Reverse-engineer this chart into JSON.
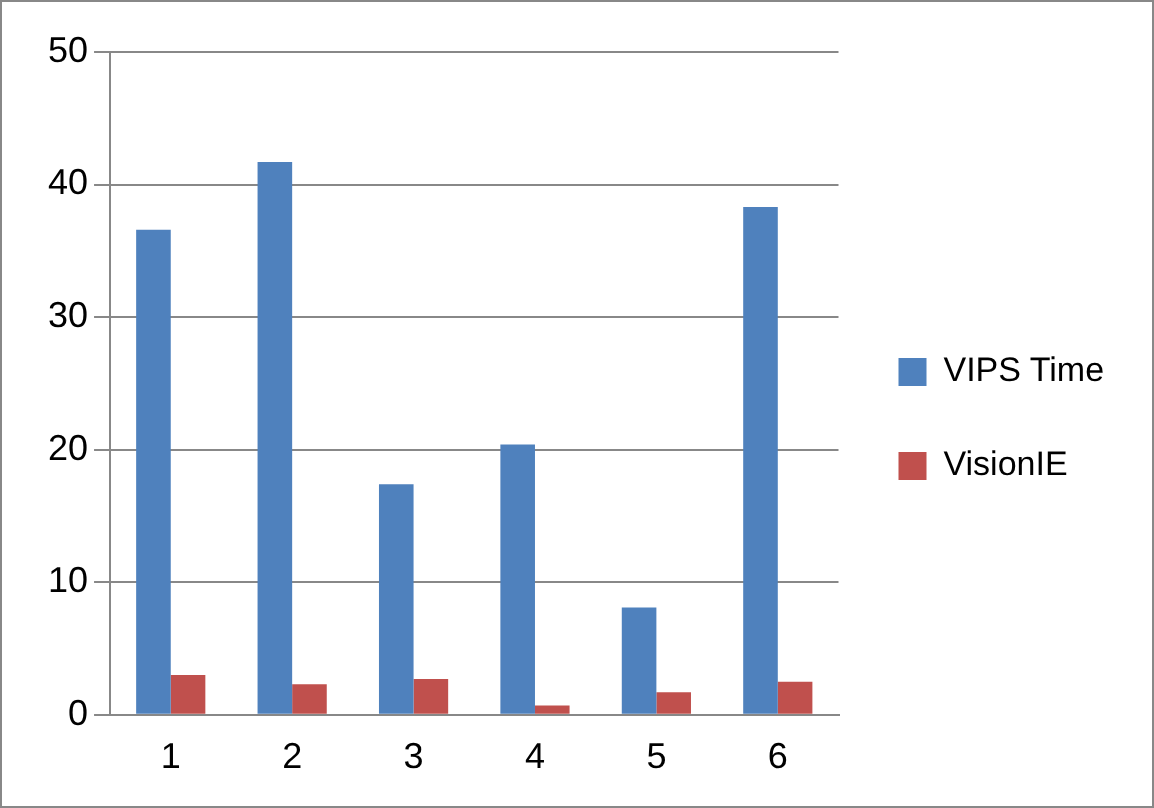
{
  "chart_data": {
    "type": "bar",
    "categories": [
      "1",
      "2",
      "3",
      "4",
      "5",
      "6"
    ],
    "series": [
      {
        "name": "VIPS Time",
        "color": "#4f81bd",
        "values": [
          36.6,
          41.7,
          17.4,
          20.4,
          8.1,
          38.3
        ]
      },
      {
        "name": "VisionIE",
        "color": "#c0504d",
        "values": [
          3.0,
          2.3,
          2.7,
          0.7,
          1.7,
          2.5
        ]
      }
    ],
    "ylim": [
      0,
      50
    ],
    "yticks": [
      0,
      10,
      20,
      30,
      40,
      50
    ],
    "grid": "y",
    "legend": "right"
  }
}
